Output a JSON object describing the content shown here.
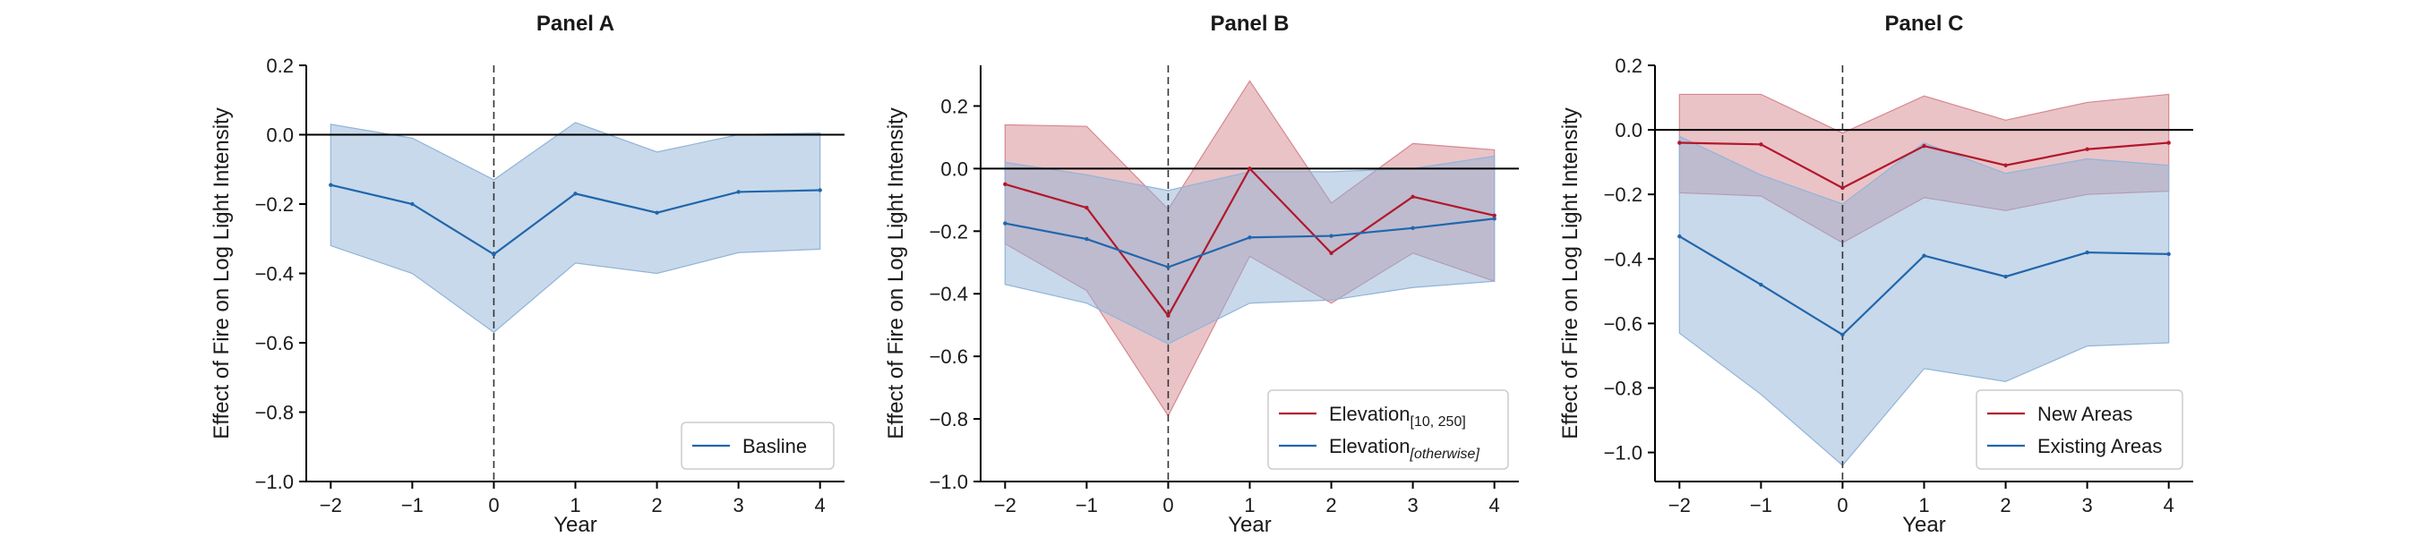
{
  "colors": {
    "red": "#b2182b",
    "blue": "#2166ac",
    "red_fill": "#d6878f",
    "blue_fill": "#92b4d8"
  },
  "chart_data": [
    {
      "type": "line",
      "title": "Panel A",
      "xlabel": "Year",
      "ylabel": "Effect of Fire on Log Light Intensity",
      "x": [
        -2,
        -1,
        0,
        1,
        2,
        3,
        4
      ],
      "xlim": [
        -2.3,
        4.3
      ],
      "ylim": [
        -1.0,
        0.2
      ],
      "yticks": [
        "0.2",
        "0.0",
        "−0.2",
        "−0.4",
        "−0.6",
        "−0.8",
        "−1.0"
      ],
      "ytick_values": [
        0.2,
        0.0,
        -0.2,
        -0.4,
        -0.6,
        -0.8,
        -1.0
      ],
      "xticks": [
        "−2",
        "−1",
        "0",
        "1",
        "2",
        "3",
        "4"
      ],
      "legend_position": "bottom-right",
      "hline": 0,
      "vline": 0,
      "series": [
        {
          "name": "Basline",
          "color": "blue",
          "values": [
            -0.145,
            -0.2,
            -0.345,
            -0.17,
            -0.225,
            -0.165,
            -0.16
          ],
          "lower": [
            -0.32,
            -0.4,
            -0.57,
            -0.37,
            -0.4,
            -0.34,
            -0.33
          ],
          "upper": [
            0.03,
            -0.01,
            -0.13,
            0.035,
            -0.05,
            0.0,
            0.005
          ]
        }
      ]
    },
    {
      "type": "line",
      "title": "Panel B",
      "xlabel": "Year",
      "ylabel": "Effect of Fire on Log Light Intensity",
      "x": [
        -2,
        -1,
        0,
        1,
        2,
        3,
        4
      ],
      "xlim": [
        -2.3,
        4.3
      ],
      "ylim": [
        -1.0,
        0.33
      ],
      "yticks": [
        "0.2",
        "0.0",
        "−0.2",
        "−0.4",
        "−0.6",
        "−0.8",
        "−1.0"
      ],
      "ytick_values": [
        0.2,
        0.0,
        -0.2,
        -0.4,
        -0.6,
        -0.8,
        -1.0
      ],
      "xticks": [
        "−2",
        "−1",
        "0",
        "1",
        "2",
        "3",
        "4"
      ],
      "legend_position": "bottom-right",
      "hline": 0,
      "vline": 0,
      "series": [
        {
          "name": "Elevation",
          "subscript": "[10, 250]",
          "color": "red",
          "values": [
            -0.05,
            -0.125,
            -0.47,
            0.0,
            -0.27,
            -0.09,
            -0.15
          ],
          "lower": [
            -0.24,
            -0.39,
            -0.79,
            -0.28,
            -0.43,
            -0.27,
            -0.36
          ],
          "upper": [
            0.14,
            0.135,
            -0.13,
            0.28,
            -0.11,
            0.08,
            0.06
          ]
        },
        {
          "name": "Elevation",
          "subscript": "[otherwise]",
          "color": "blue",
          "values": [
            -0.175,
            -0.225,
            -0.315,
            -0.22,
            -0.215,
            -0.19,
            -0.16
          ],
          "lower": [
            -0.37,
            -0.43,
            -0.56,
            -0.43,
            -0.42,
            -0.38,
            -0.36
          ],
          "upper": [
            0.02,
            -0.02,
            -0.07,
            -0.01,
            -0.01,
            0.0,
            0.04
          ]
        }
      ]
    },
    {
      "type": "line",
      "title": "Panel C",
      "xlabel": "Year",
      "ylabel": "Effect of Fire on Log Light Intensity",
      "x": [
        -2,
        -1,
        0,
        1,
        2,
        3,
        4
      ],
      "xlim": [
        -2.3,
        4.3
      ],
      "ylim": [
        -1.09,
        0.2
      ],
      "yticks": [
        "0.2",
        "0.0",
        "−0.2",
        "−0.4",
        "−0.6",
        "−0.8",
        "−1.0"
      ],
      "ytick_values": [
        0.2,
        0.0,
        -0.2,
        -0.4,
        -0.6,
        -0.8,
        -1.0
      ],
      "xticks": [
        "−2",
        "−1",
        "0",
        "1",
        "2",
        "3",
        "4"
      ],
      "legend_position": "bottom-right",
      "hline": 0,
      "vline": 0,
      "series": [
        {
          "name": "New Areas",
          "color": "red",
          "values": [
            -0.04,
            -0.045,
            -0.18,
            -0.05,
            -0.11,
            -0.06,
            -0.04
          ],
          "lower": [
            -0.195,
            -0.205,
            -0.35,
            -0.21,
            -0.25,
            -0.2,
            -0.19
          ],
          "upper": [
            0.11,
            0.11,
            -0.01,
            0.105,
            0.03,
            0.085,
            0.11
          ]
        },
        {
          "name": "Existing Areas",
          "color": "blue",
          "values": [
            -0.33,
            -0.48,
            -0.635,
            -0.39,
            -0.455,
            -0.38,
            -0.385
          ],
          "lower": [
            -0.63,
            -0.82,
            -1.04,
            -0.74,
            -0.78,
            -0.67,
            -0.66
          ],
          "upper": [
            -0.02,
            -0.14,
            -0.23,
            -0.04,
            -0.135,
            -0.09,
            -0.11
          ]
        }
      ]
    }
  ]
}
